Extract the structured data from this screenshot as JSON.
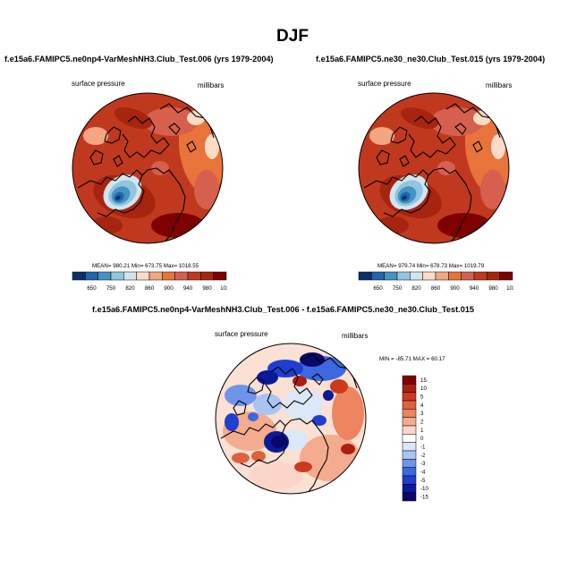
{
  "page_title": "DJF",
  "colors": {
    "abs_scale": [
      "#08306b",
      "#2166ac",
      "#4393c3",
      "#92c5de",
      "#d1e5f0",
      "#fddbc7",
      "#f4a582",
      "#e8743b",
      "#d6604d",
      "#c0391e",
      "#a7240f",
      "#7f0000"
    ],
    "diff_scale": [
      "#08086b",
      "#0a1a9a",
      "#1e3fd0",
      "#3c68e0",
      "#6f95ea",
      "#a9c4f2",
      "#dce7f8",
      "#ffffff",
      "#fbd6c8",
      "#f4ab8e",
      "#ec8560",
      "#e0603b",
      "#cc3a1e",
      "#ac1e10",
      "#800000"
    ],
    "land_outline": "#000000"
  },
  "chart_data": [
    {
      "type": "heatmap",
      "projection": "polar stereographic (northern hemisphere)",
      "title": "f.e15a6.FAMIPC5.ne0np4-VarMeshNH3.Club_Test.006 (yrs 1979-2004)",
      "left_label": "surface pressure",
      "right_label": "millibars",
      "stats": {
        "mean": "980.21",
        "min": "673.75",
        "max": "1018.55"
      },
      "stats_text": "MEAN= 980.21   Min= 673.75   Max= 1018.55",
      "colorbar_labels": [
        "650",
        "750",
        "820",
        "860",
        "900",
        "940",
        "980",
        "1020"
      ]
    },
    {
      "type": "heatmap",
      "projection": "polar stereographic (northern hemisphere)",
      "title": "f.e15a6.FAMIPC5.ne30_ne30.Club_Test.015 (yrs 1979-2004)",
      "left_label": "surface pressure",
      "right_label": "millibars",
      "stats": {
        "mean": "979.74",
        "min": "678.73",
        "max": "1019.79"
      },
      "stats_text": "MEAN= 979.74   Min= 678.73   Max= 1019.79",
      "colorbar_labels": [
        "650",
        "750",
        "820",
        "860",
        "900",
        "940",
        "980",
        "1020"
      ]
    },
    {
      "type": "heatmap",
      "projection": "polar stereographic (northern hemisphere)",
      "title": "f.e15a6.FAMIPC5.ne0np4-VarMeshNH3.Club_Test.006 - f.e15a6.FAMIPC5.ne30_ne30.Club_Test.015",
      "left_label": "surface pressure",
      "right_label": "millibars",
      "stats": {
        "min": "-85.71",
        "max": "60.17"
      },
      "stats_text": "MIN = -85.71  MAX =  60.17",
      "colorbar_labels": [
        "15",
        "10",
        "5",
        "4",
        "3",
        "2",
        "1",
        "0",
        "-1",
        "-2",
        "-3",
        "-4",
        "-5",
        "-10",
        "-15"
      ]
    }
  ]
}
